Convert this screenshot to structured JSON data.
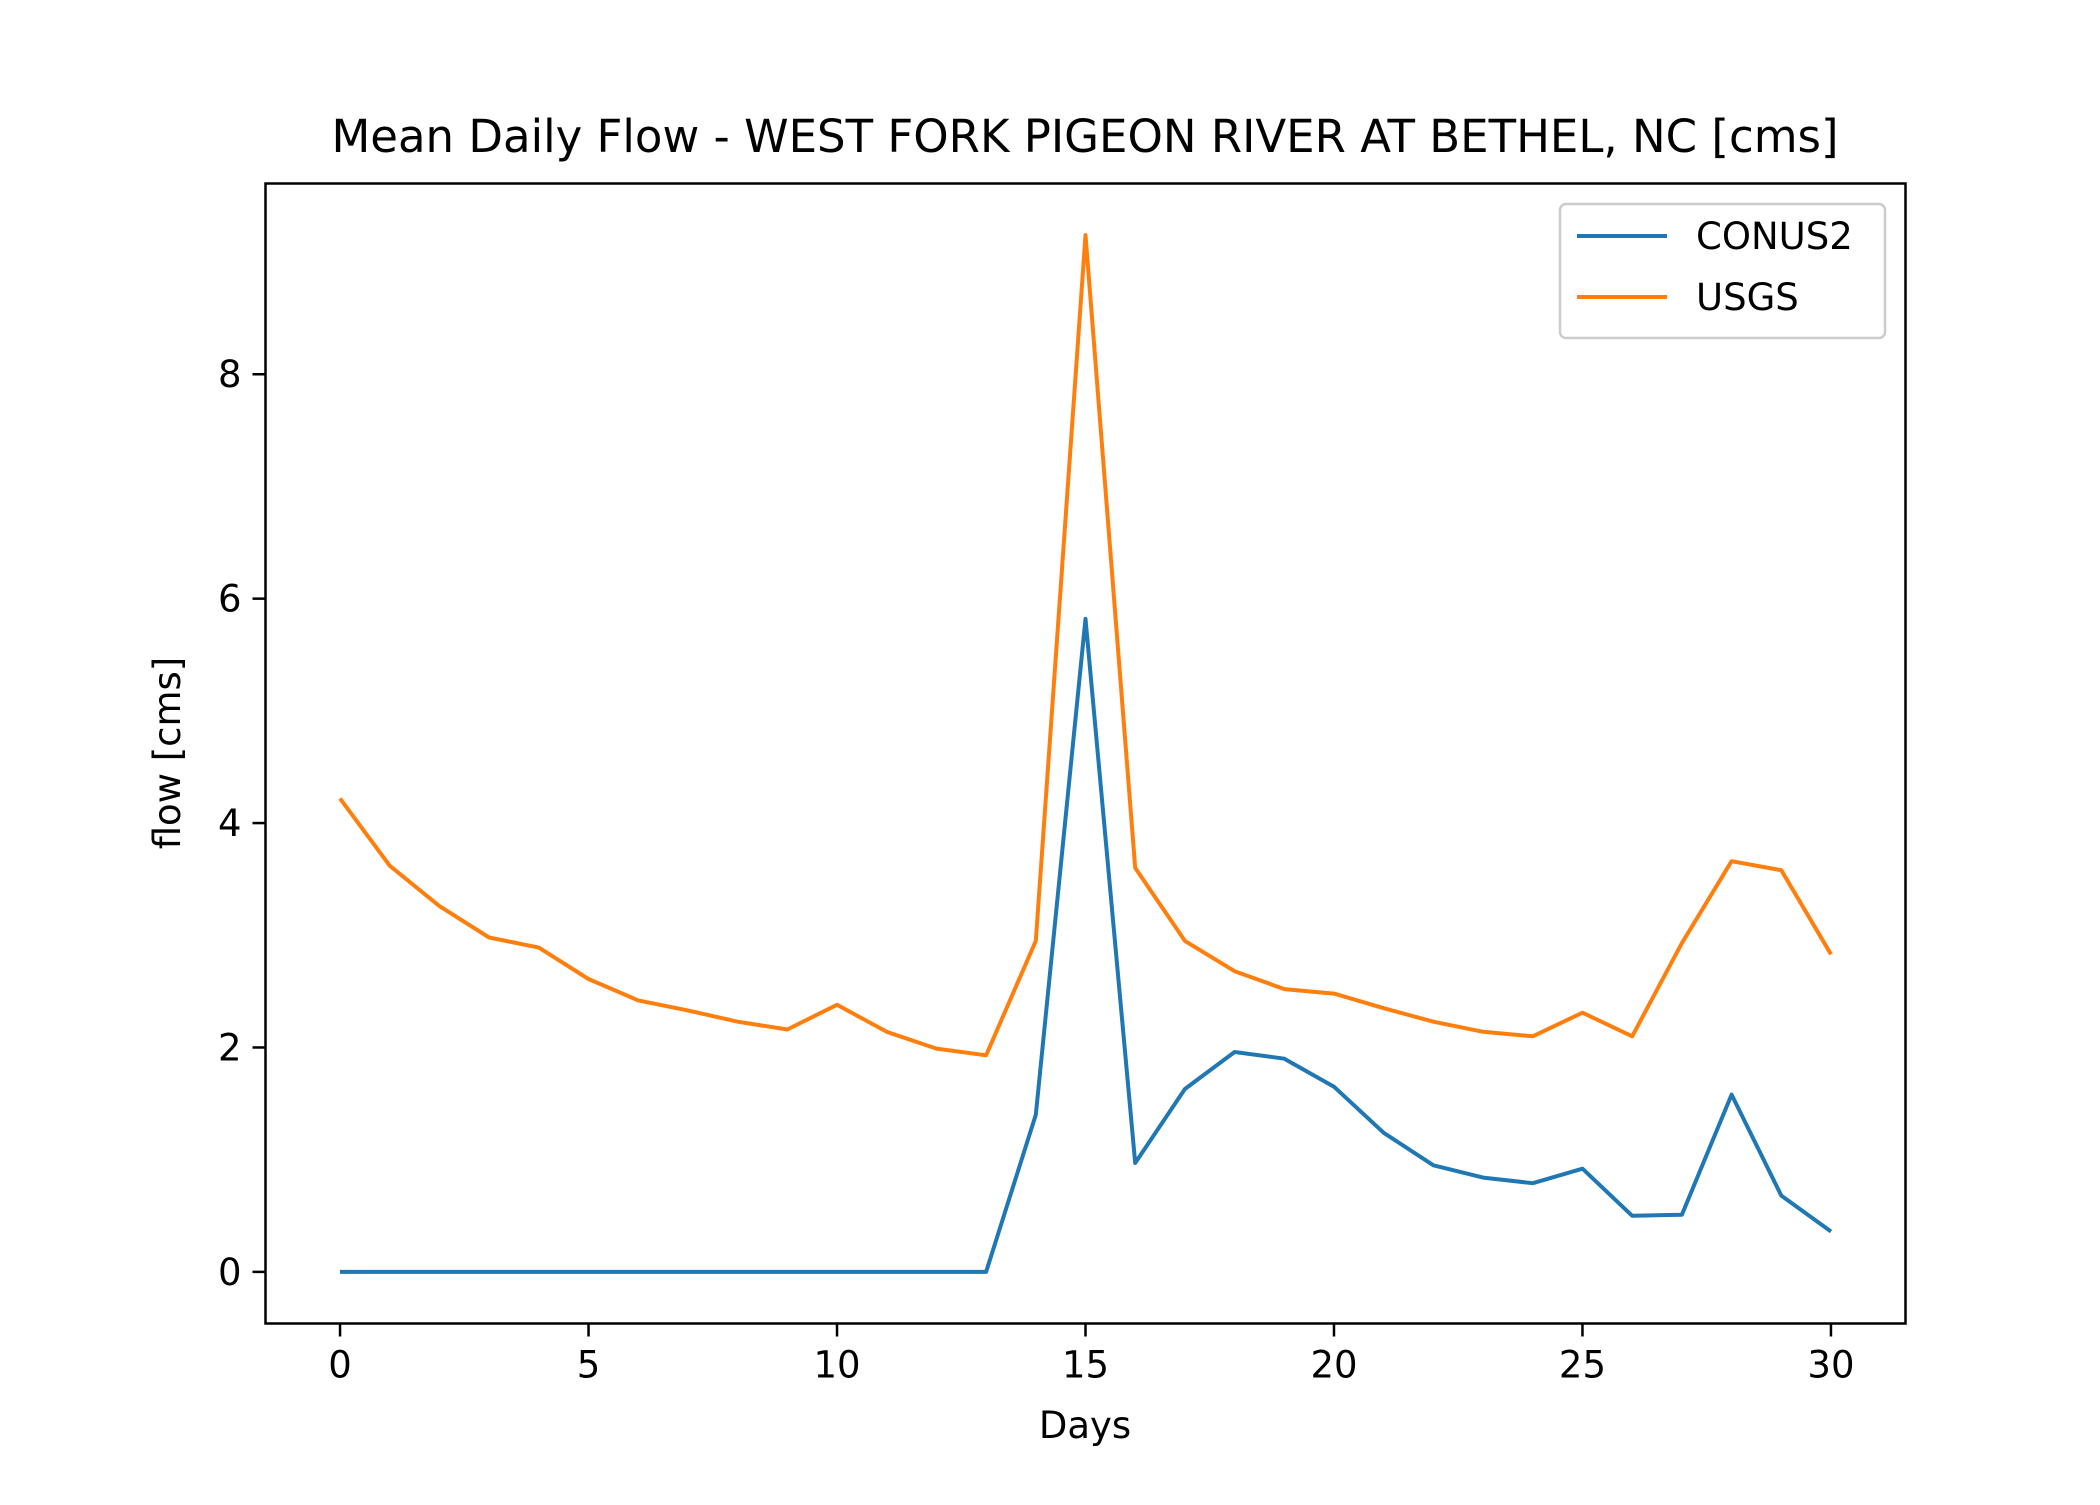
{
  "chart_data": {
    "type": "line",
    "title": "Mean Daily Flow - WEST FORK PIGEON RIVER AT BETHEL, NC [cms]",
    "xlabel": "Days",
    "ylabel": "flow [cms]",
    "xlim": [
      -1.5,
      31.5
    ],
    "ylim": [
      -0.46,
      9.7
    ],
    "xticks": [
      0,
      5,
      10,
      15,
      20,
      25,
      30
    ],
    "yticks": [
      0,
      2,
      4,
      6,
      8
    ],
    "grid": false,
    "legend_position": "top-right",
    "x": [
      0,
      1,
      2,
      3,
      4,
      5,
      6,
      7,
      8,
      9,
      10,
      11,
      12,
      13,
      14,
      15,
      16,
      17,
      18,
      19,
      20,
      21,
      22,
      23,
      24,
      25,
      26,
      27,
      28,
      29,
      30
    ],
    "series": [
      {
        "name": "CONUS2",
        "color": "#1f77b4",
        "values": [
          0,
          0,
          0,
          0,
          0,
          0,
          0,
          0,
          0,
          0,
          0,
          0,
          0,
          0,
          1.4,
          5.82,
          0.97,
          1.63,
          1.96,
          1.9,
          1.65,
          1.24,
          0.95,
          0.84,
          0.79,
          0.92,
          0.5,
          0.51,
          1.58,
          0.68,
          0.36
        ]
      },
      {
        "name": "USGS",
        "color": "#ff7f0e",
        "values": [
          4.22,
          3.62,
          3.26,
          2.98,
          2.89,
          2.61,
          2.42,
          2.33,
          2.23,
          2.16,
          2.38,
          2.14,
          1.99,
          1.93,
          2.95,
          9.24,
          3.6,
          2.95,
          2.68,
          2.52,
          2.48,
          2.35,
          2.23,
          2.14,
          2.1,
          2.31,
          2.1,
          2.93,
          3.66,
          3.58,
          2.83
        ]
      }
    ]
  }
}
